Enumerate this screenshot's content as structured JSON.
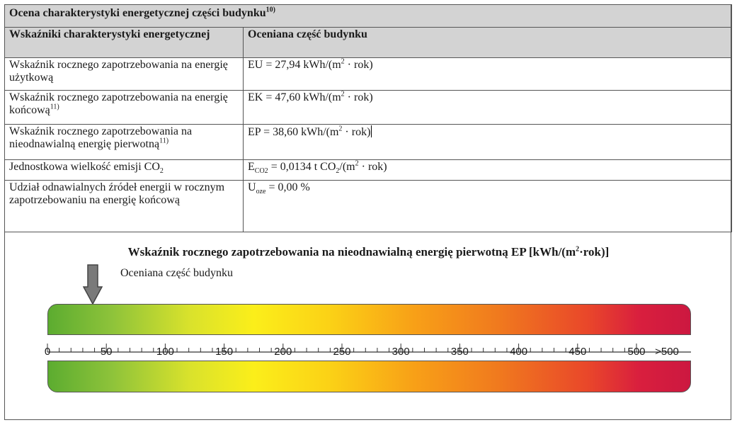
{
  "section_title": "Ocena charakterystyki energetycznej części budynku",
  "section_title_note": "10)",
  "headers": {
    "col1": "Wskaźniki charakterystyki energetycznej",
    "col2": "Oceniana część budynku"
  },
  "rows": [
    {
      "label": "Wskaźnik rocznego zapotrzebowania na energię użytkową",
      "note": "",
      "value_prefix": "EU = 27,94 kWh/(m",
      "value_sup": "2",
      "value_suffix": " · rok)"
    },
    {
      "label": "Wskaźnik rocznego zapotrzebowania na energię końcową",
      "note": "11)",
      "value_prefix": "EK = 47,60 kWh/(m",
      "value_sup": "2",
      "value_suffix": " · rok)"
    },
    {
      "label": "Wskaźnik rocznego zapotrzebowania na nieodnawialną energię pierwotną",
      "note": "11)",
      "value_prefix": "EP = 38,60 kWh/(m",
      "value_sup": "2",
      "value_suffix": " · rok)"
    },
    {
      "label_prefix": "Jednostkowa wielkość emisji CO",
      "label_sub": "2",
      "value_symbol": "E",
      "value_symbol_sub": "CO2",
      "value_rest_prefix": " = 0,0134 t CO",
      "value_rest_sub": "2",
      "value_rest_mid": "/(m",
      "value_sup": "2",
      "value_suffix": " · rok)"
    },
    {
      "label": "Udział odnawialnych źródeł energii w rocznym zapotrzebowaniu na energię końcową",
      "value_symbol": "U",
      "value_symbol_sub": "oze",
      "value_rest": " = 0,00 %"
    }
  ],
  "scale": {
    "title_prefix": "Wskaźnik rocznego zapotrzebowania na nieodnawialną energię pierwotną EP [kWh/(m",
    "title_sup": "2",
    "title_suffix": "·rok)]",
    "marker_label": "Oceniana część budynku",
    "marker_value": 38.6,
    "ticks": [
      {
        "value": 0,
        "label": "0"
      },
      {
        "value": 50,
        "label": "50"
      },
      {
        "value": 100,
        "label": "100"
      },
      {
        "value": 150,
        "label": "150"
      },
      {
        "value": 200,
        "label": "200"
      },
      {
        "value": 250,
        "label": "250"
      },
      {
        "value": 300,
        "label": "300"
      },
      {
        "value": 350,
        "label": "350"
      },
      {
        "value": 400,
        "label": "400"
      },
      {
        "value": 450,
        "label": "450"
      },
      {
        "value": 500,
        "label": "500"
      }
    ],
    "overflow_label": ">500",
    "range": [
      0,
      500
    ],
    "colors": [
      "#5cac30",
      "#fbee1a",
      "#f8a017",
      "#d91f3e"
    ]
  }
}
